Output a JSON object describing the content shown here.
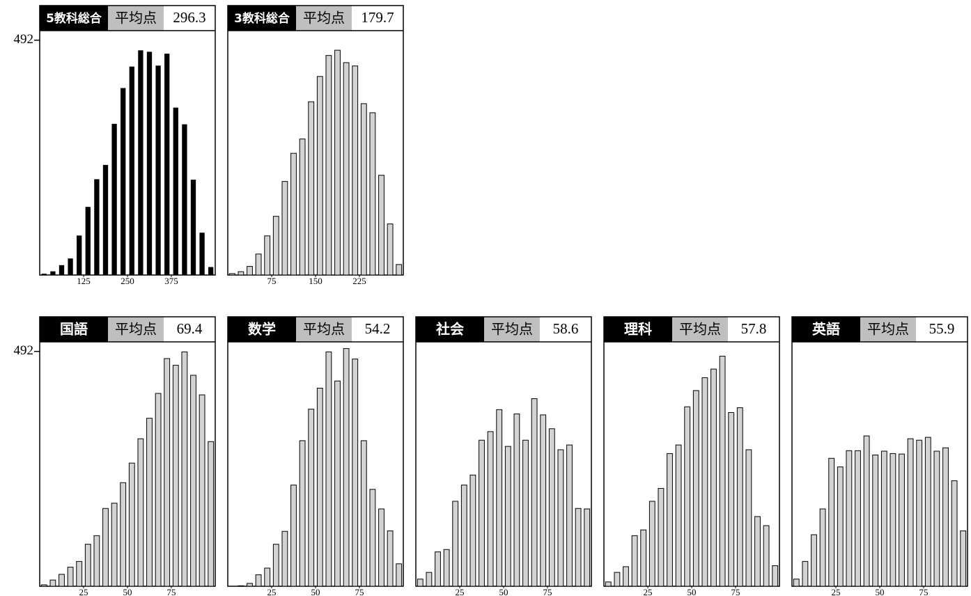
{
  "chart_data": [
    {
      "type": "histogram",
      "title": "5教科総合",
      "avg_label": "平均点",
      "avg": 296.3,
      "color": "#000000",
      "bins": [
        0,
        25,
        50,
        75,
        100,
        125,
        150,
        175,
        200,
        225,
        250,
        275,
        300,
        325,
        350,
        375,
        400,
        425,
        450,
        475,
        500
      ],
      "values": [
        2,
        7,
        20,
        34,
        82,
        142,
        200,
        230,
        316,
        391,
        436,
        470,
        467,
        438,
        463,
        350,
        315,
        199,
        88,
        16
      ],
      "xlim": [
        0,
        500
      ],
      "xticks": [
        125,
        250,
        375
      ],
      "ylim": [
        0,
        512
      ],
      "yticks": [
        492
      ]
    },
    {
      "type": "histogram",
      "title": "3教科総合",
      "avg_label": "平均点",
      "avg": 179.7,
      "color": "#d3d3d3",
      "bins": [
        0,
        15,
        30,
        45,
        60,
        75,
        90,
        105,
        120,
        135,
        150,
        165,
        180,
        195,
        210,
        225,
        240,
        255,
        270,
        285,
        300
      ],
      "values": [
        3,
        7,
        18,
        44,
        82,
        123,
        196,
        255,
        285,
        363,
        416,
        460,
        471,
        445,
        438,
        359,
        340,
        209,
        107,
        22
      ],
      "xlim": [
        0,
        300
      ],
      "xticks": [
        75,
        150,
        225
      ],
      "ylim": [
        0,
        512
      ]
    },
    {
      "type": "histogram",
      "title": "国語",
      "avg_label": "平均点",
      "avg": 69.4,
      "color": "#d3d3d3",
      "bins": [
        0,
        5,
        10,
        15,
        20,
        25,
        30,
        35,
        40,
        45,
        50,
        55,
        60,
        65,
        70,
        75,
        80,
        85,
        90,
        95,
        100
      ],
      "values": [
        3,
        13,
        25,
        40,
        52,
        88,
        106,
        163,
        174,
        217,
        258,
        309,
        352,
        404,
        477,
        463,
        491,
        442,
        401,
        303
      ],
      "xlim": [
        0,
        100
      ],
      "xticks": [
        25,
        50,
        75
      ],
      "ylim": [
        0,
        512
      ],
      "yticks": [
        492
      ]
    },
    {
      "type": "histogram",
      "title": "数学",
      "avg_label": "平均点",
      "avg": 54.2,
      "color": "#d3d3d3",
      "bins": [
        0,
        5,
        10,
        15,
        20,
        25,
        30,
        35,
        40,
        45,
        50,
        55,
        60,
        65,
        70,
        75,
        80,
        85,
        90,
        95,
        100
      ],
      "values": [
        0,
        1,
        6,
        24,
        38,
        88,
        115,
        212,
        305,
        371,
        415,
        491,
        430,
        498,
        476,
        305,
        203,
        162,
        116,
        47
      ],
      "xlim": [
        0,
        100
      ],
      "xticks": [
        25,
        50,
        75
      ],
      "ylim": [
        0,
        512
      ]
    },
    {
      "type": "histogram",
      "title": "社会",
      "avg_label": "平均点",
      "avg": 58.6,
      "color": "#d3d3d3",
      "bins": [
        0,
        5,
        10,
        15,
        20,
        25,
        30,
        35,
        40,
        45,
        50,
        55,
        60,
        65,
        70,
        75,
        80,
        85,
        90,
        95,
        100
      ],
      "values": [
        15,
        29,
        72,
        77,
        178,
        212,
        233,
        306,
        324,
        370,
        293,
        361,
        306,
        393,
        359,
        330,
        286,
        296,
        163,
        162
      ],
      "xlim": [
        0,
        100
      ],
      "xticks": [
        25,
        50,
        75
      ],
      "ylim": [
        0,
        512
      ]
    },
    {
      "type": "histogram",
      "title": "理科",
      "avg_label": "平均点",
      "avg": 57.8,
      "color": "#d3d3d3",
      "bins": [
        0,
        5,
        10,
        15,
        20,
        25,
        30,
        35,
        40,
        45,
        50,
        55,
        60,
        65,
        70,
        75,
        80,
        85,
        90,
        95,
        100
      ],
      "values": [
        9,
        29,
        41,
        106,
        118,
        178,
        205,
        278,
        296,
        376,
        410,
        437,
        455,
        482,
        364,
        374,
        286,
        146,
        127,
        43
      ],
      "xlim": [
        0,
        100
      ],
      "xticks": [
        25,
        50,
        75
      ],
      "ylim": [
        0,
        512
      ]
    },
    {
      "type": "histogram",
      "title": "英語",
      "avg_label": "平均点",
      "avg": 55.9,
      "color": "#d3d3d3",
      "bins": [
        0,
        5,
        10,
        15,
        20,
        25,
        30,
        35,
        40,
        45,
        50,
        55,
        60,
        65,
        70,
        75,
        80,
        85,
        90,
        95,
        100
      ],
      "values": [
        15,
        52,
        108,
        162,
        268,
        250,
        284,
        284,
        315,
        275,
        283,
        278,
        277,
        309,
        306,
        312,
        283,
        290,
        221,
        116
      ],
      "xlim": [
        0,
        100
      ],
      "xticks": [
        25,
        50,
        75
      ],
      "ylim": [
        0,
        512
      ]
    }
  ]
}
